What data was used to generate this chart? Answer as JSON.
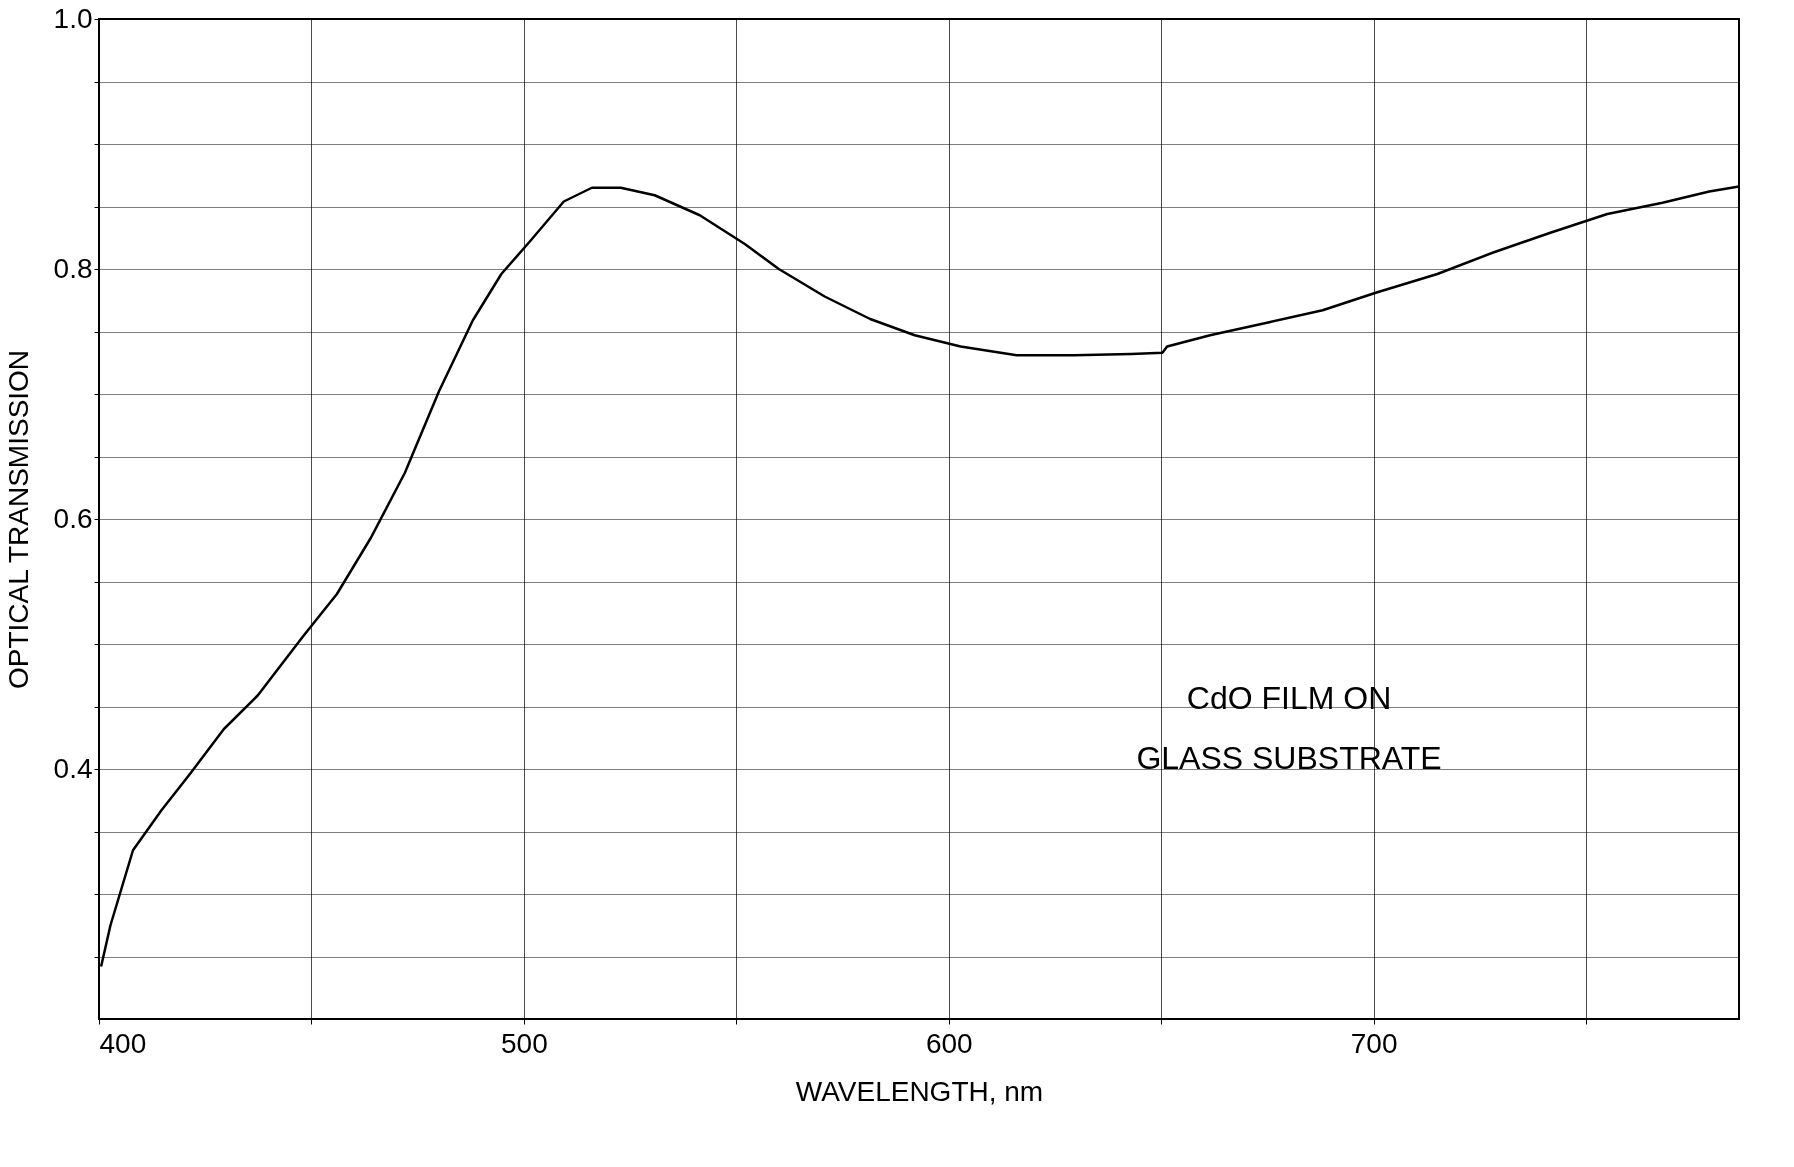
{
  "chart_data": {
    "type": "line",
    "xlabel": "WAVELENGTH, nm",
    "ylabel": "OPTICAL TRANSMISSION",
    "annotations": [
      "CdO FILM ON\nGLASS SUBSTRATE"
    ],
    "x": [
      400.5,
      402.7,
      408,
      414.7,
      421.4,
      429.4,
      437.4,
      448,
      456,
      464,
      472,
      480,
      488,
      494.7,
      501.4,
      509.4,
      516,
      522.8,
      530.8,
      541.4,
      552,
      560,
      570.8,
      581.5,
      592,
      602.8,
      616,
      629.5,
      643,
      650.3,
      651.4,
      661.5,
      674.9,
      688,
      700.5,
      715,
      728,
      741.6,
      755,
      768,
      779,
      786
    ],
    "series": [
      {
        "color": "#000000",
        "values": [
          0.242,
          0.275,
          0.335,
          0.367,
          0.396,
          0.432,
          0.459,
          0.506,
          0.54,
          0.585,
          0.637,
          0.702,
          0.759,
          0.796,
          0.822,
          0.854,
          0.865,
          0.865,
          0.859,
          0.843,
          0.82,
          0.8,
          0.778,
          0.76,
          0.747,
          0.738,
          0.731,
          0.731,
          0.732,
          0.733,
          0.738,
          0.747,
          0.757,
          0.767,
          0.781,
          0.796,
          0.813,
          0.829,
          0.844,
          0.853,
          0.862,
          0.866
        ]
      }
    ],
    "xlim": [
      400,
      786
    ],
    "ylim": [
      0.2,
      1.0
    ],
    "xticks": [
      400,
      {
        "value": 450,
        "label": null
      },
      500,
      {
        "value": 550,
        "label": null
      },
      600,
      {
        "value": 650,
        "label": null
      },
      700,
      {
        "value": 750,
        "label": null
      }
    ],
    "yticks": [
      {
        "value": 0.25,
        "label": null
      },
      {
        "value": 0.3,
        "label": null
      },
      {
        "value": 0.35,
        "label": null
      },
      0.4,
      {
        "value": 0.45,
        "label": null
      },
      {
        "value": 0.5,
        "label": null
      },
      {
        "value": 0.55,
        "label": null
      },
      0.6,
      {
        "value": 0.65,
        "label": null
      },
      {
        "value": 0.7,
        "label": null
      },
      {
        "value": 0.75,
        "label": null
      },
      0.8,
      {
        "value": 0.85,
        "label": null
      },
      {
        "value": 0.9,
        "label": null
      },
      {
        "value": 0.95,
        "label": null
      },
      {
        "value": 1.0,
        "label": "1.0"
      }
    ],
    "grid": true,
    "marker": "none",
    "line_style": "solid"
  }
}
